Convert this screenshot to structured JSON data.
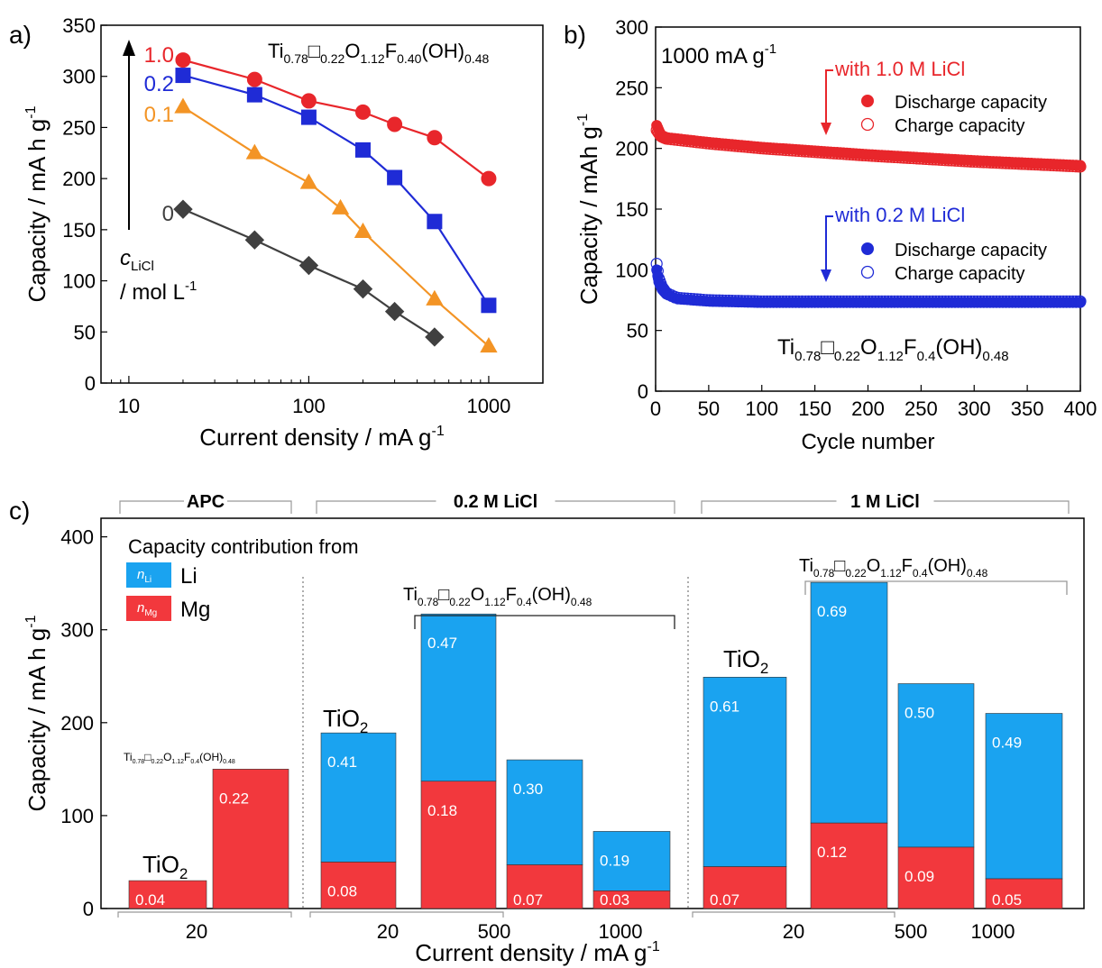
{
  "panels": {
    "a": {
      "label": "a)"
    },
    "b": {
      "label": "b)"
    },
    "c": {
      "label": "c)"
    }
  },
  "chart_data": [
    {
      "id": "a",
      "type": "line",
      "xlabel": "Current density / mA g",
      "xlabel_sup": "-1",
      "ylabel": "Capacity / mA h g",
      "ylabel_sup": "-1",
      "xscale": "log",
      "xlim": [
        7,
        2000
      ],
      "ylim": [
        0,
        350
      ],
      "xticks": [
        10,
        100,
        1000
      ],
      "yticks": [
        0,
        50,
        100,
        150,
        200,
        250,
        300,
        350
      ],
      "annotation": {
        "parts": [
          [
            "Ti",
            "0.78"
          ],
          [
            "□",
            "0.22"
          ],
          [
            "O",
            "1.12"
          ],
          [
            "F",
            "0.40"
          ],
          [
            "(OH)",
            "0.48"
          ]
        ]
      },
      "c_label": "c",
      "c_sub": "LiCl",
      "c_unit": "/ mol L",
      "c_unit_sup": "-1",
      "series": [
        {
          "name": "1.0",
          "color": "#e8262b",
          "marker": "circle",
          "points": [
            [
              20,
              316
            ],
            [
              50,
              297
            ],
            [
              100,
              276
            ],
            [
              200,
              265
            ],
            [
              300,
              253
            ],
            [
              500,
              240
            ],
            [
              1000,
              200
            ]
          ]
        },
        {
          "name": "0.2",
          "color": "#1f2bd6",
          "marker": "square",
          "points": [
            [
              20,
              301
            ],
            [
              50,
              282
            ],
            [
              100,
              260
            ],
            [
              200,
              228
            ],
            [
              300,
              201
            ],
            [
              500,
              158
            ],
            [
              1000,
              76
            ]
          ]
        },
        {
          "name": "0.1",
          "color": "#f39425",
          "marker": "triangle",
          "points": [
            [
              20,
              270
            ],
            [
              50,
              225
            ],
            [
              100,
              196
            ],
            [
              150,
              171
            ],
            [
              200,
              148
            ],
            [
              500,
              82
            ],
            [
              1000,
              36
            ]
          ]
        },
        {
          "name": "0",
          "color": "#404040",
          "marker": "diamond",
          "points": [
            [
              20,
              170
            ],
            [
              50,
              140
            ],
            [
              100,
              115
            ],
            [
              200,
              92
            ],
            [
              300,
              70
            ],
            [
              500,
              45
            ]
          ]
        }
      ]
    },
    {
      "id": "b",
      "type": "scatter",
      "xlabel": "Cycle number",
      "ylabel": "Capacity / mAh g",
      "ylabel_sup": "-1",
      "xlim": [
        0,
        400
      ],
      "ylim": [
        0,
        300
      ],
      "xticks": [
        0,
        50,
        100,
        150,
        200,
        250,
        300,
        350,
        400
      ],
      "yticks": [
        0,
        50,
        100,
        150,
        200,
        250,
        300
      ],
      "rate_label": "1000 mA g",
      "rate_sup": "-1",
      "annotation": {
        "parts": [
          [
            "Ti",
            "0.78"
          ],
          [
            "□",
            "0.22"
          ],
          [
            "O",
            "1.12"
          ],
          [
            "F",
            "0.4"
          ],
          [
            "(OH)",
            "0.48"
          ]
        ]
      },
      "groups": [
        {
          "label": "with 1.0 M LiCl",
          "color": "#e8262b",
          "discharge_name": "Discharge capacity",
          "charge_name": "Charge capacity",
          "discharge": [
            [
              1,
              219
            ],
            [
              5,
              211
            ],
            [
              10,
              209
            ],
            [
              50,
              205
            ],
            [
              100,
              201
            ],
            [
              200,
              195
            ],
            [
              300,
              190
            ],
            [
              400,
              186
            ]
          ],
          "charge": [
            [
              1,
              215
            ],
            [
              5,
              210
            ],
            [
              10,
              208
            ],
            [
              50,
              204
            ],
            [
              100,
              200
            ],
            [
              200,
              194
            ],
            [
              300,
              189
            ],
            [
              400,
              185
            ]
          ]
        },
        {
          "label": "with 0.2 M LiCl",
          "color": "#1f2bd6",
          "discharge_name": "Discharge capacity",
          "charge_name": "Charge capacity",
          "discharge": [
            [
              1,
              100
            ],
            [
              3,
              90
            ],
            [
              6,
              84
            ],
            [
              10,
              80
            ],
            [
              20,
              76
            ],
            [
              50,
              74
            ],
            [
              100,
              73
            ],
            [
              200,
              73
            ],
            [
              300,
              73
            ],
            [
              400,
              73
            ]
          ],
          "charge": [
            [
              1,
              105
            ],
            [
              3,
              93
            ],
            [
              6,
              86
            ],
            [
              10,
              81
            ],
            [
              20,
              77
            ],
            [
              50,
              75
            ],
            [
              100,
              74
            ],
            [
              200,
              74
            ],
            [
              300,
              74
            ],
            [
              400,
              74
            ]
          ]
        }
      ]
    },
    {
      "id": "c",
      "type": "bar",
      "xlabel": "Current density / mA g",
      "xlabel_sup": "-1",
      "ylabel": "Capacity / mA h g",
      "ylabel_sup": "-1",
      "ylim": [
        0,
        420
      ],
      "yticks": [
        0,
        100,
        200,
        300,
        400
      ],
      "legend_title": "Capacity contribution from",
      "legend": [
        {
          "symbol": "n",
          "sub": "Li",
          "name": "Li",
          "color": "#1aa3f0"
        },
        {
          "symbol": "n",
          "sub": "Mg",
          "name": "Mg",
          "color": "#f2383d"
        }
      ],
      "groups": [
        {
          "name": "APC",
          "bars": [
            {
              "mg": 30,
              "li": 0,
              "mg_label": "0.04",
              "li_label": ""
            },
            {
              "mg": 150,
              "li": 0,
              "mg_label": "0.22",
              "li_label": ""
            }
          ],
          "ticks": [
            "20"
          ],
          "annotations": [
            {
              "text": "TiO",
              "sub": "2"
            },
            {
              "parts": [
                [
                  "Ti",
                  "0.78"
                ],
                [
                  "□",
                  "0.22"
                ],
                [
                  "O",
                  "1.12"
                ],
                [
                  "F",
                  "0.4"
                ],
                [
                  "(OH)",
                  "0.48"
                ]
              ]
            }
          ]
        },
        {
          "name": "0.2 M LiCl",
          "bars": [
            {
              "mg": 50,
              "li": 139,
              "mg_label": "0.08",
              "li_label": "0.41"
            },
            {
              "mg": 137,
              "li": 180,
              "mg_label": "0.18",
              "li_label": "0.47"
            },
            {
              "mg": 47,
              "li": 113,
              "mg_label": "0.07",
              "li_label": "0.30"
            },
            {
              "mg": 19,
              "li": 64,
              "mg_label": "0.03",
              "li_label": "0.19"
            }
          ],
          "ticks": [
            "20",
            "500",
            "1000"
          ],
          "annotations": [
            {
              "text": "TiO",
              "sub": "2"
            },
            {
              "parts": [
                [
                  "Ti",
                  "0.78"
                ],
                [
                  "□",
                  "0.22"
                ],
                [
                  "O",
                  "1.12"
                ],
                [
                  "F",
                  "0.4"
                ],
                [
                  "(OH)",
                  "0.48"
                ]
              ]
            }
          ]
        },
        {
          "name": "1 M LiCl",
          "bars": [
            {
              "mg": 45,
              "li": 204,
              "mg_label": "0.07",
              "li_label": "0.61"
            },
            {
              "mg": 92,
              "li": 259,
              "mg_label": "0.12",
              "li_label": "0.69"
            },
            {
              "mg": 66,
              "li": 176,
              "mg_label": "0.09",
              "li_label": "0.50"
            },
            {
              "mg": 32,
              "li": 178,
              "mg_label": "0.05",
              "li_label": "0.49"
            }
          ],
          "ticks": [
            "20",
            "500",
            "1000"
          ],
          "annotations": [
            {
              "text": "TiO",
              "sub": "2"
            },
            {
              "parts": [
                [
                  "Ti",
                  "0.78"
                ],
                [
                  "□",
                  "0.22"
                ],
                [
                  "O",
                  "1.12"
                ],
                [
                  "F",
                  "0.4"
                ],
                [
                  "(OH)",
                  "0.48"
                ]
              ]
            }
          ]
        }
      ]
    }
  ]
}
